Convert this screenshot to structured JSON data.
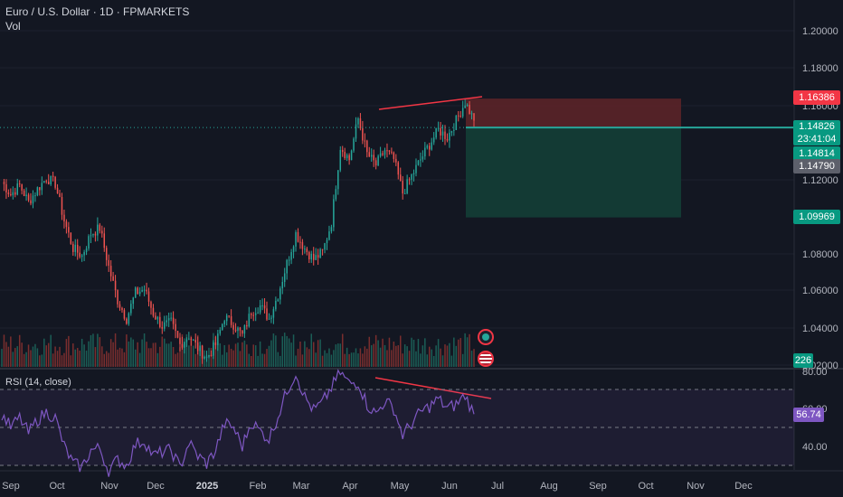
{
  "header": {
    "title": "Euro / U.S. Dollar · 1D · FPMARKETS",
    "vol_label": "Vol"
  },
  "price_axis": {
    "ticks": [
      "1.20000",
      "1.18000",
      "1.16000",
      "1.12000",
      "1.08000",
      "1.06000",
      "1.04000",
      "1.02000"
    ]
  },
  "price_labels": {
    "stop": "1.16386",
    "current": "1.14826",
    "countdown": "23:41:04",
    "label_a": "1.14814",
    "label_b": "1.14790",
    "target": "1.09969",
    "volume": "226"
  },
  "rsi": {
    "label": "RSI (14, close)",
    "value": "56.74",
    "ticks": [
      "80.00",
      "60.00",
      "40.00"
    ]
  },
  "time_axis": {
    "labels": [
      "Sep",
      "Oct",
      "Nov",
      "Dec",
      "2025",
      "Feb",
      "Mar",
      "Apr",
      "May",
      "Jun",
      "Jul",
      "Aug",
      "Sep",
      "Oct",
      "Nov",
      "Dec"
    ]
  },
  "colors": {
    "background": "#131722",
    "bull": "#26a69a",
    "bear": "#ef5350",
    "rsi_line": "#7e57c2",
    "stop_zone": "#5b2428",
    "target_zone": "#133c36",
    "divergence": "#f23645"
  },
  "chart_data": {
    "type": "candlestick",
    "symbol": "EURUSD",
    "interval": "1D",
    "close_path": [
      1.119,
      1.112,
      1.117,
      1.108,
      1.115,
      1.121,
      1.118,
      1.098,
      1.083,
      1.079,
      1.091,
      1.094,
      1.073,
      1.055,
      1.045,
      1.059,
      1.061,
      1.048,
      1.041,
      1.043,
      1.031,
      1.036,
      1.029,
      1.024,
      1.031,
      1.046,
      1.042,
      1.036,
      1.049,
      1.052,
      1.045,
      1.058,
      1.075,
      1.091,
      1.083,
      1.077,
      1.081,
      1.097,
      1.138,
      1.131,
      1.153,
      1.134,
      1.128,
      1.136,
      1.131,
      1.113,
      1.122,
      1.131,
      1.139,
      1.147,
      1.143,
      1.152,
      1.162,
      1.152
    ],
    "positions": [
      {
        "type": "short",
        "entry": 1.14826,
        "stop": 1.16386,
        "target": 1.09969
      }
    ],
    "rsi_path": [
      57,
      50,
      55,
      47,
      54,
      58,
      55,
      40,
      31,
      29,
      38,
      39,
      27,
      33,
      30,
      41,
      43,
      35,
      37,
      38,
      29,
      42,
      35,
      31,
      38,
      52,
      50,
      40,
      53,
      48,
      44,
      56,
      69,
      79,
      66,
      59,
      63,
      71,
      79,
      73,
      74,
      62,
      57,
      64,
      60,
      46,
      52,
      58,
      61,
      65,
      60,
      62,
      67,
      57
    ],
    "rsi_range": [
      30,
      80
    ],
    "rsi_bands": [
      70,
      50,
      30
    ]
  }
}
